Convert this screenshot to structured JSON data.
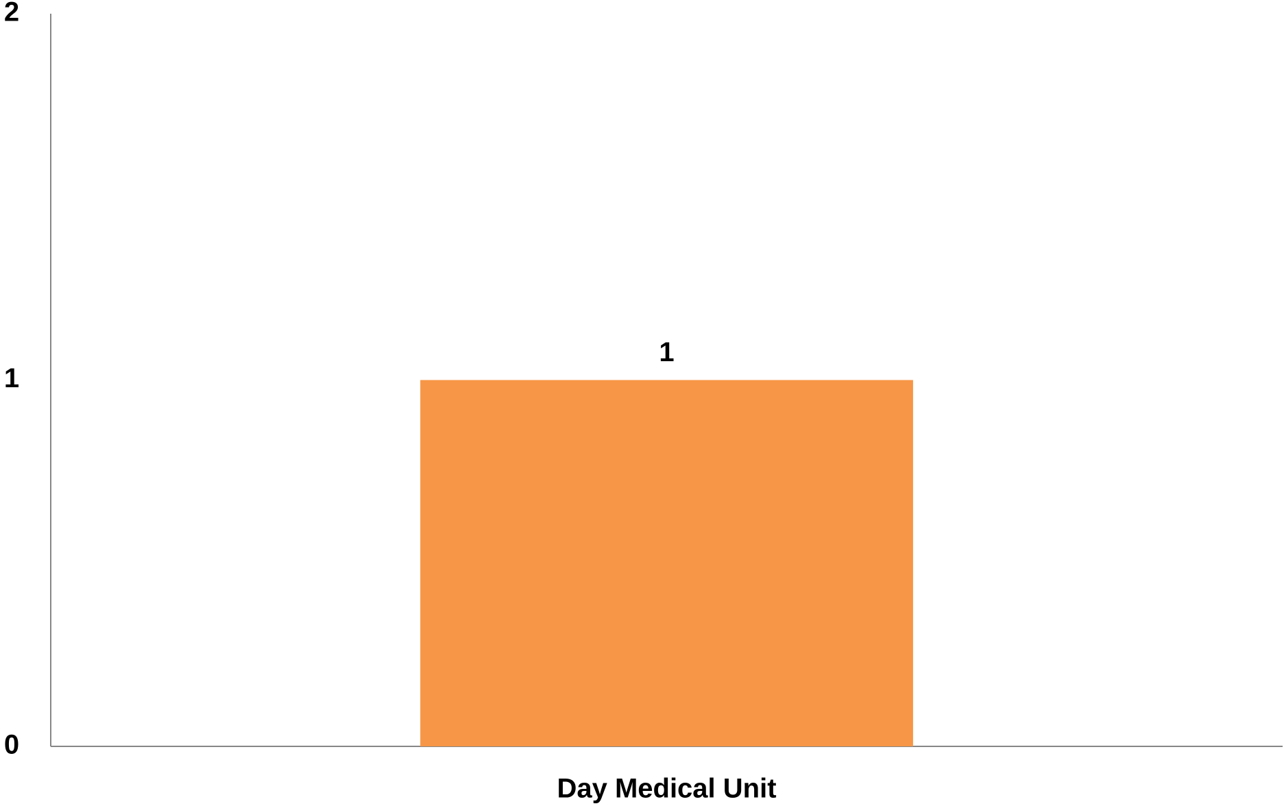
{
  "chart_data": {
    "type": "bar",
    "categories": [
      "Day Medical Unit"
    ],
    "values": [
      1
    ],
    "color": "#f79646",
    "ylim": [
      0,
      2
    ],
    "yticks": [
      0,
      1,
      2
    ],
    "grid": false
  }
}
